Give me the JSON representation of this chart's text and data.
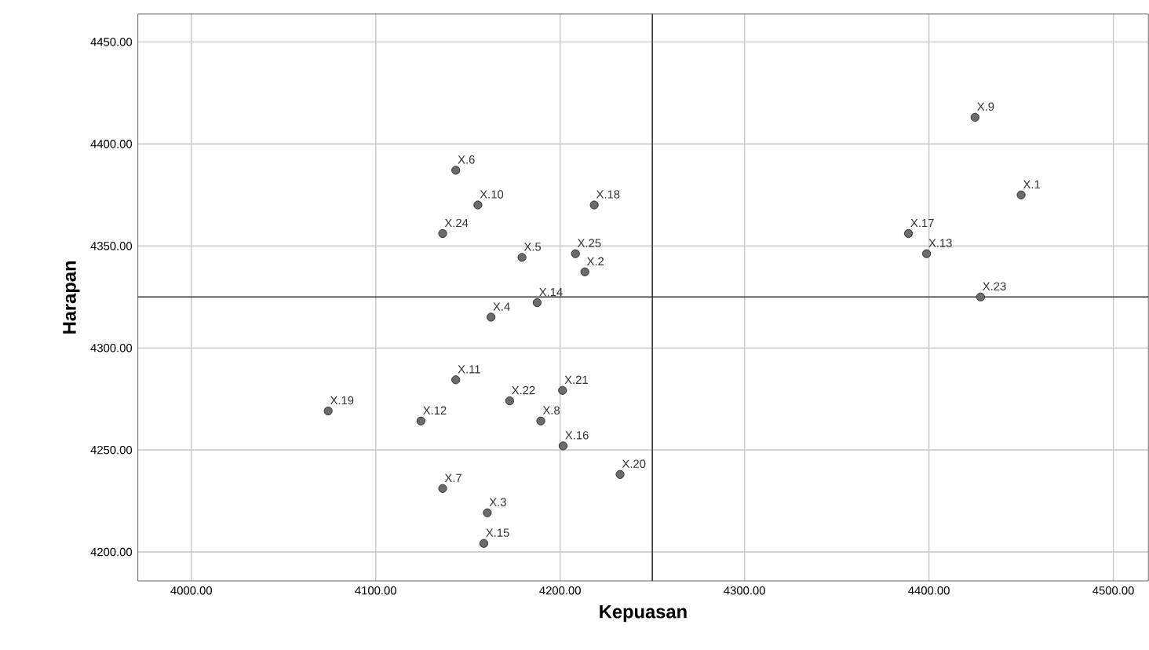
{
  "chart_data": {
    "type": "scatter",
    "xlabel": "Kepuasan",
    "ylabel": "Harapan",
    "x": [
      4450,
      4213.4,
      4160.5,
      4162.5,
      4179.3,
      4143.4,
      4136.3,
      4189.5,
      4425,
      4155.4,
      4143.4,
      4124.5,
      4398.7,
      4187.5,
      4158.6,
      4201.6,
      4388.9,
      4218.5,
      4074.2,
      4232.5,
      4201.3,
      4172.6,
      4428,
      4136.3,
      4208.3
    ],
    "series": [
      {
        "color": "#6b6b6b",
        "values": [
          4375,
          4337.3,
          4219.2,
          4315.1,
          4344.4,
          4387.1,
          4231.1,
          4264.2,
          4413.1,
          4370.1,
          4284.4,
          4264.2,
          4346.2,
          4322.2,
          4204.2,
          4252,
          4356.1,
          4370.1,
          4269.1,
          4238,
          4279.2,
          4274.1,
          4325,
          4356.1,
          4346.2
        ]
      }
    ],
    "marker": "circle",
    "grid": true,
    "xlim": [
      3971,
      4519
    ],
    "ylim": [
      4185.8,
      4463.7
    ],
    "xticks": [
      {
        "value": 4000,
        "label": "4000.00"
      },
      {
        "value": 4100,
        "label": "4100.00"
      },
      {
        "value": 4200,
        "label": "4200.00"
      },
      {
        "value": 4300,
        "label": "4300.00"
      },
      {
        "value": 4400,
        "label": "4400.00"
      },
      {
        "value": 4500,
        "label": "4500.00"
      }
    ],
    "yticks": [
      {
        "value": 4200,
        "label": "4200.00"
      },
      {
        "value": 4250,
        "label": "4250.00"
      },
      {
        "value": 4300,
        "label": "4300.00"
      },
      {
        "value": 4350,
        "label": "4350.00"
      },
      {
        "value": 4400,
        "label": "4400.00"
      },
      {
        "value": 4450,
        "label": "4450.00"
      }
    ],
    "ref_lines": [
      {
        "axis": "x",
        "value": 4250
      },
      {
        "axis": "y",
        "value": 4325
      }
    ],
    "annotations": [
      {
        "text": "X.1",
        "x": 4450,
        "y": 4375
      },
      {
        "text": "X.2",
        "x": 4213.4,
        "y": 4337.3
      },
      {
        "text": "X.3",
        "x": 4160.5,
        "y": 4219.2
      },
      {
        "text": "X.4",
        "x": 4162.5,
        "y": 4315.1
      },
      {
        "text": "X.5",
        "x": 4179.3,
        "y": 4344.4
      },
      {
        "text": "X.6",
        "x": 4143.4,
        "y": 4387.1
      },
      {
        "text": "X.7",
        "x": 4136.3,
        "y": 4231.1
      },
      {
        "text": "X.8",
        "x": 4189.5,
        "y": 4264.2
      },
      {
        "text": "X.9",
        "x": 4425,
        "y": 4413.1
      },
      {
        "text": "X.10",
        "x": 4155.4,
        "y": 4370.1
      },
      {
        "text": "X.11",
        "x": 4143.4,
        "y": 4284.4
      },
      {
        "text": "X.12",
        "x": 4124.5,
        "y": 4264.2
      },
      {
        "text": "X.13",
        "x": 4398.7,
        "y": 4346.2
      },
      {
        "text": "X.14",
        "x": 4187.5,
        "y": 4322.2
      },
      {
        "text": "X.15",
        "x": 4158.6,
        "y": 4204.2
      },
      {
        "text": "X.16",
        "x": 4201.6,
        "y": 4252
      },
      {
        "text": "X.17",
        "x": 4388.9,
        "y": 4356.1
      },
      {
        "text": "X.18",
        "x": 4218.5,
        "y": 4370.1
      },
      {
        "text": "X.19",
        "x": 4074.2,
        "y": 4269.1
      },
      {
        "text": "X.20",
        "x": 4232.5,
        "y": 4238
      },
      {
        "text": "X.21",
        "x": 4201.3,
        "y": 4279.2
      },
      {
        "text": "X.22",
        "x": 4172.6,
        "y": 4274.1
      },
      {
        "text": "X.23",
        "x": 4428,
        "y": 4325
      },
      {
        "text": "X.24",
        "x": 4136.3,
        "y": 4356.1
      },
      {
        "text": "X.25",
        "x": 4208.3,
        "y": 4346.2
      }
    ]
  }
}
